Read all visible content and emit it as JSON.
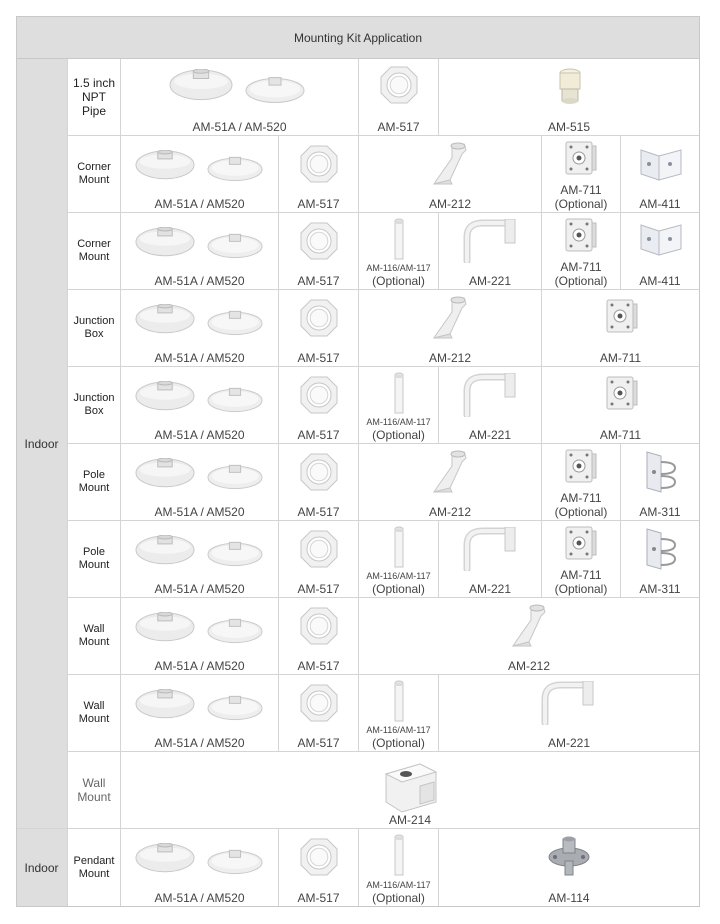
{
  "header": {
    "title": "Mounting Kit Application"
  },
  "side_labels": {
    "indoor_main": "Indoor",
    "indoor_last": "Indoor"
  },
  "rows": [
    {
      "label": "1.5 inch\nNPT\nPipe",
      "products": [
        "AM-51A / AM-520",
        "AM-517",
        "AM-515"
      ]
    },
    {
      "label": "Corner\nMount",
      "products": [
        "AM-51A / AM520",
        "AM-517",
        "AM-212",
        "AM-711",
        "(Optional)",
        "AM-411"
      ]
    },
    {
      "label": "Corner\nMount",
      "products": [
        "AM-51A / AM520",
        "AM-517",
        "AM-116/AM-117",
        "(Optional)",
        "AM-221",
        "AM-711",
        "(Optional)",
        "AM-411"
      ]
    },
    {
      "label": "Junction\nBox",
      "products": [
        "AM-51A / AM520",
        "AM-517",
        "AM-212",
        "AM-711"
      ]
    },
    {
      "label": "Junction\nBox",
      "products": [
        "AM-51A / AM520",
        "AM-517",
        "AM-116/AM-117",
        "(Optional)",
        "AM-221",
        "AM-711"
      ]
    },
    {
      "label": "Pole\nMount",
      "products": [
        "AM-51A / AM520",
        "AM-517",
        "AM-212",
        "AM-711",
        "(Optional)",
        "AM-311"
      ]
    },
    {
      "label": "Pole\nMount",
      "products": [
        "AM-51A / AM520",
        "AM-517",
        "AM-116/AM-117",
        "(Optional)",
        "AM-221",
        "AM-711",
        "(Optional)",
        "AM-311"
      ]
    },
    {
      "label": "Wall\nMount",
      "products": [
        "AM-51A / AM520",
        "AM-517",
        "AM-212"
      ]
    },
    {
      "label": "Wall\nMount",
      "products": [
        "AM-51A / AM520",
        "AM-517",
        "AM-116/AM-117",
        "(Optional)",
        "AM-221"
      ]
    },
    {
      "label": "Wall\nMount",
      "products": [
        "AM-214"
      ]
    },
    {
      "label": "Pendant\nMount",
      "products": [
        "AM-51A / AM520",
        "AM-517",
        "AM-116/AM-117",
        "(Optional)",
        "AM-114"
      ]
    }
  ],
  "icons": [
    "dome-adapter-icon",
    "ring-adapter-icon",
    "pipe-coupler-icon",
    "wall-bracket-icon",
    "junction-box-icon",
    "corner-bracket-icon",
    "pole-bracket-icon",
    "pipe-extension-icon",
    "gooseneck-arm-icon",
    "wall-mount-box-icon",
    "pendant-cap-icon"
  ]
}
